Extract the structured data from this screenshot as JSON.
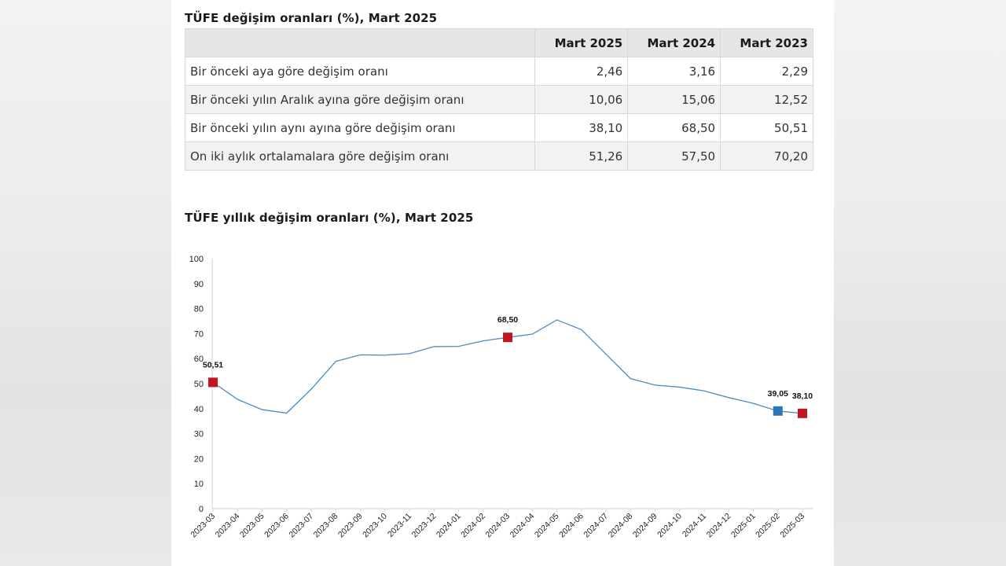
{
  "table": {
    "title": "TÜFE değişim oranları (%), Mart 2025",
    "headers": [
      "",
      "Mart 2025",
      "Mart 2024",
      "Mart 2023"
    ],
    "rows": [
      {
        "label": "Bir önceki aya göre değişim oranı",
        "values": [
          "2,46",
          "3,16",
          "2,29"
        ]
      },
      {
        "label": "Bir önceki yılın Aralık ayına göre değişim oranı",
        "values": [
          "10,06",
          "15,06",
          "12,52"
        ]
      },
      {
        "label": "Bir önceki yılın aynı ayına göre değişim oranı",
        "values": [
          "38,10",
          "68,50",
          "50,51"
        ]
      },
      {
        "label": "On iki aylık ortalamalara göre değişim oranı",
        "values": [
          "51,26",
          "57,50",
          "70,20"
        ]
      }
    ]
  },
  "chart_data": {
    "type": "line",
    "title": "TÜFE yıllık değişim oranları (%), Mart 2025",
    "xlabel": "",
    "ylabel": "",
    "ylim": [
      0,
      100
    ],
    "yticks": [
      0,
      10,
      20,
      30,
      40,
      50,
      60,
      70,
      80,
      90,
      100
    ],
    "grid": false,
    "legend": "none",
    "categories": [
      "2023-03",
      "2023-04",
      "2023-05",
      "2023-06",
      "2023-07",
      "2023-08",
      "2023-09",
      "2023-10",
      "2023-11",
      "2023-12",
      "2024-01",
      "2024-02",
      "2024-03",
      "2024-04",
      "2024-05",
      "2024-06",
      "2024-07",
      "2024-08",
      "2024-09",
      "2024-10",
      "2024-11",
      "2024-12",
      "2025-01",
      "2025-02",
      "2025-03"
    ],
    "series": [
      {
        "color": "#4a8cc2",
        "values": [
          50.51,
          43.7,
          39.6,
          38.2,
          47.8,
          58.9,
          61.5,
          61.4,
          62.0,
          64.8,
          64.9,
          67.1,
          68.5,
          69.8,
          75.5,
          71.6,
          61.8,
          52.0,
          49.4,
          48.6,
          47.1,
          44.4,
          42.1,
          39.05,
          38.1
        ]
      }
    ],
    "highlights": [
      {
        "index": 0,
        "label": "50,51",
        "color": "#c0161f"
      },
      {
        "index": 12,
        "label": "68,50",
        "color": "#c0161f"
      },
      {
        "index": 23,
        "label": "39,05",
        "color": "#2e75b6"
      },
      {
        "index": 24,
        "label": "38,10",
        "color": "#c0161f"
      }
    ]
  }
}
